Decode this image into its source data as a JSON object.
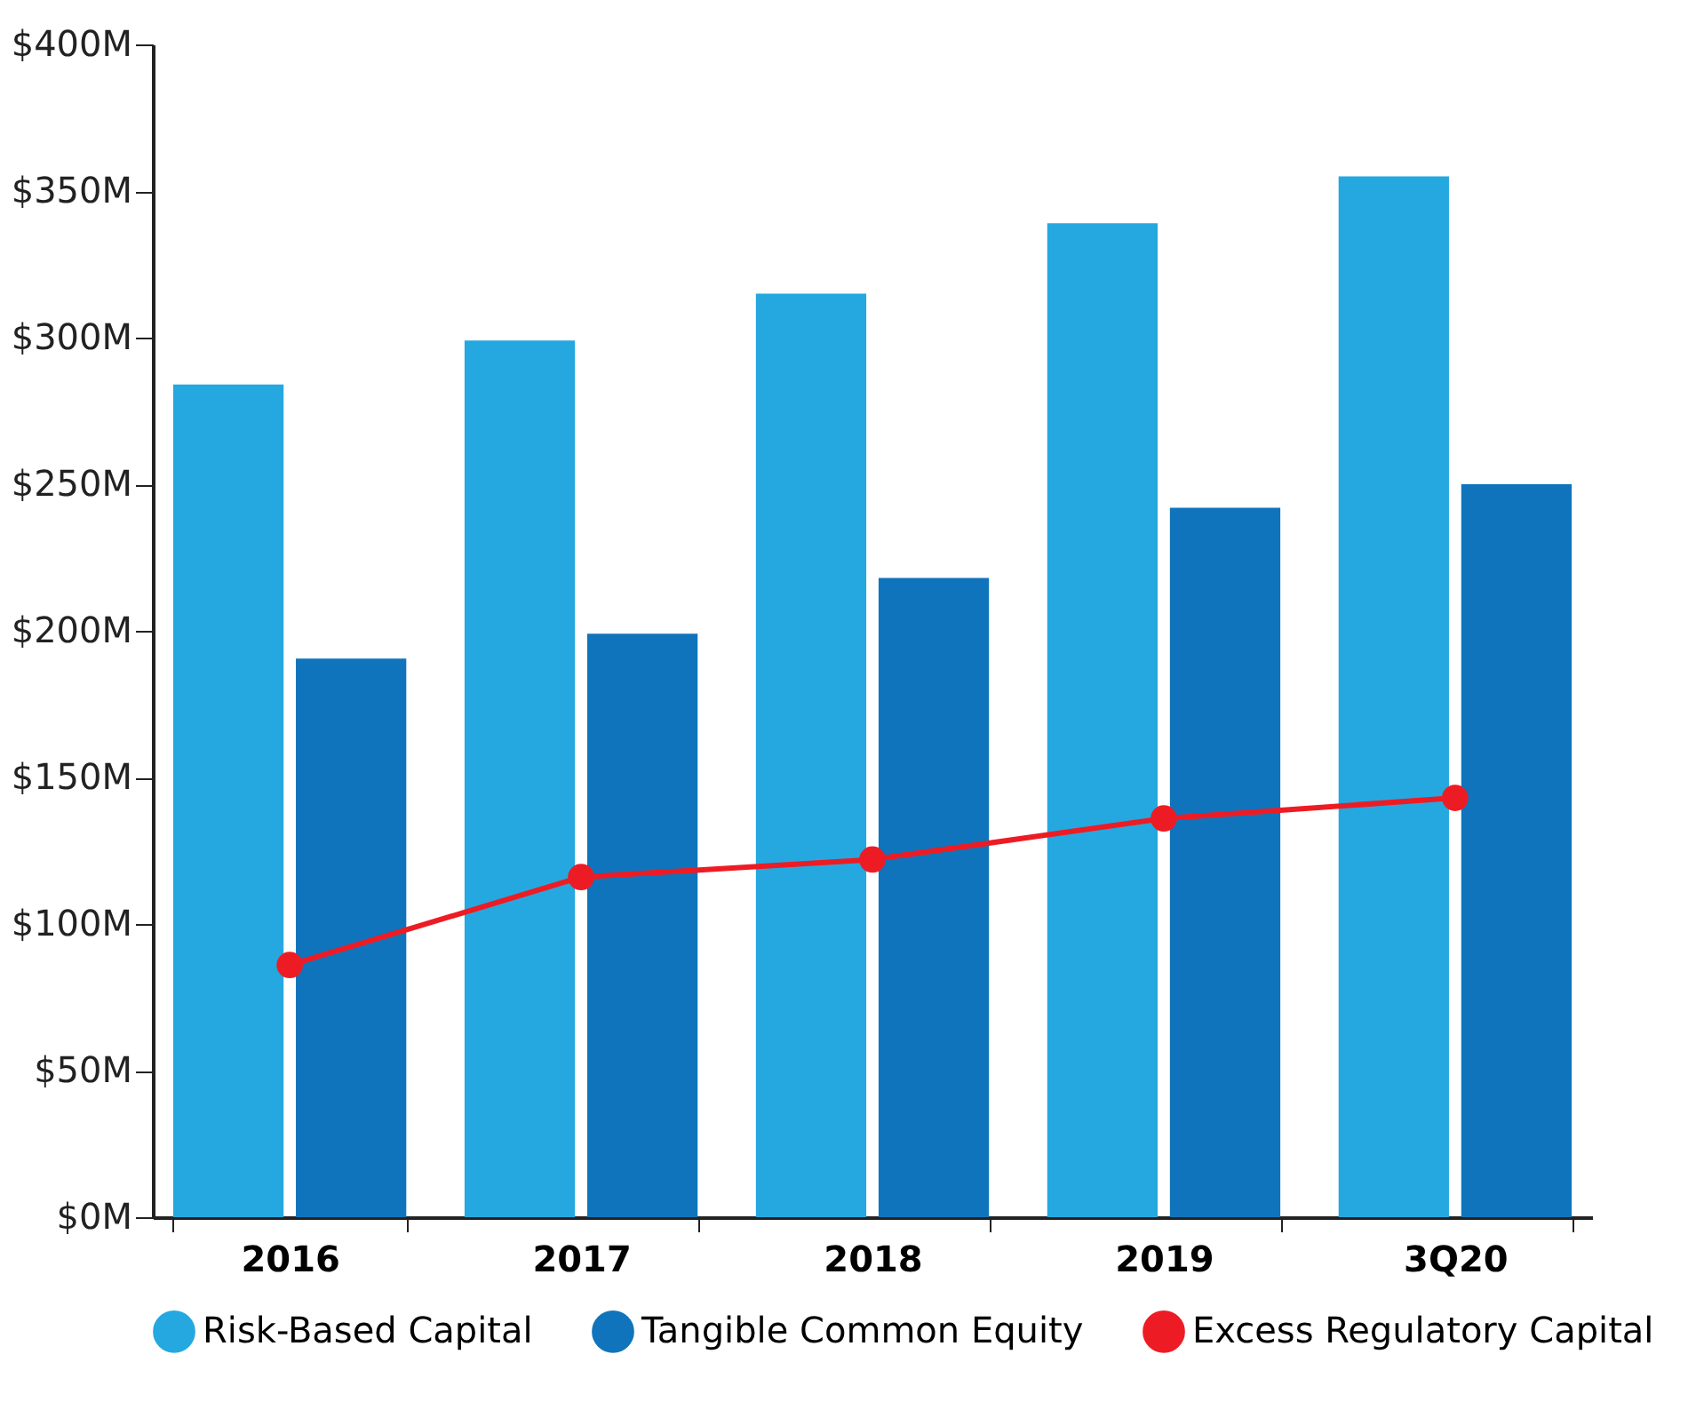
{
  "chart_data": {
    "type": "bar",
    "categories": [
      "2016",
      "2017",
      "2018",
      "2019",
      "3Q20"
    ],
    "series": [
      {
        "name": "Risk-Based Capital",
        "color": "#25a8e0",
        "values": [
          284,
          299,
          315,
          339,
          355
        ]
      },
      {
        "name": "Tangible Common Equity",
        "color": "#1074bc",
        "values": [
          190.5,
          199,
          218,
          242,
          250
        ]
      },
      {
        "name": "Excess Regulatory Capital",
        "color": "#ed1c24",
        "type": "line",
        "marker": "circle",
        "values": [
          86,
          116,
          122,
          136,
          143
        ]
      }
    ],
    "ylim": [
      0,
      400
    ],
    "yticks": [
      {
        "value": 0,
        "label": "$0M"
      },
      {
        "value": 50,
        "label": "$50M"
      },
      {
        "value": 100,
        "label": "$100M"
      },
      {
        "value": 150,
        "label": "$150M"
      },
      {
        "value": 200,
        "label": "$200M"
      },
      {
        "value": 250,
        "label": "$250M"
      },
      {
        "value": 300,
        "label": "$300M"
      },
      {
        "value": 350,
        "label": "$350M"
      },
      {
        "value": 400,
        "label": "$400M"
      }
    ],
    "grid": false,
    "legend": "bottom"
  }
}
